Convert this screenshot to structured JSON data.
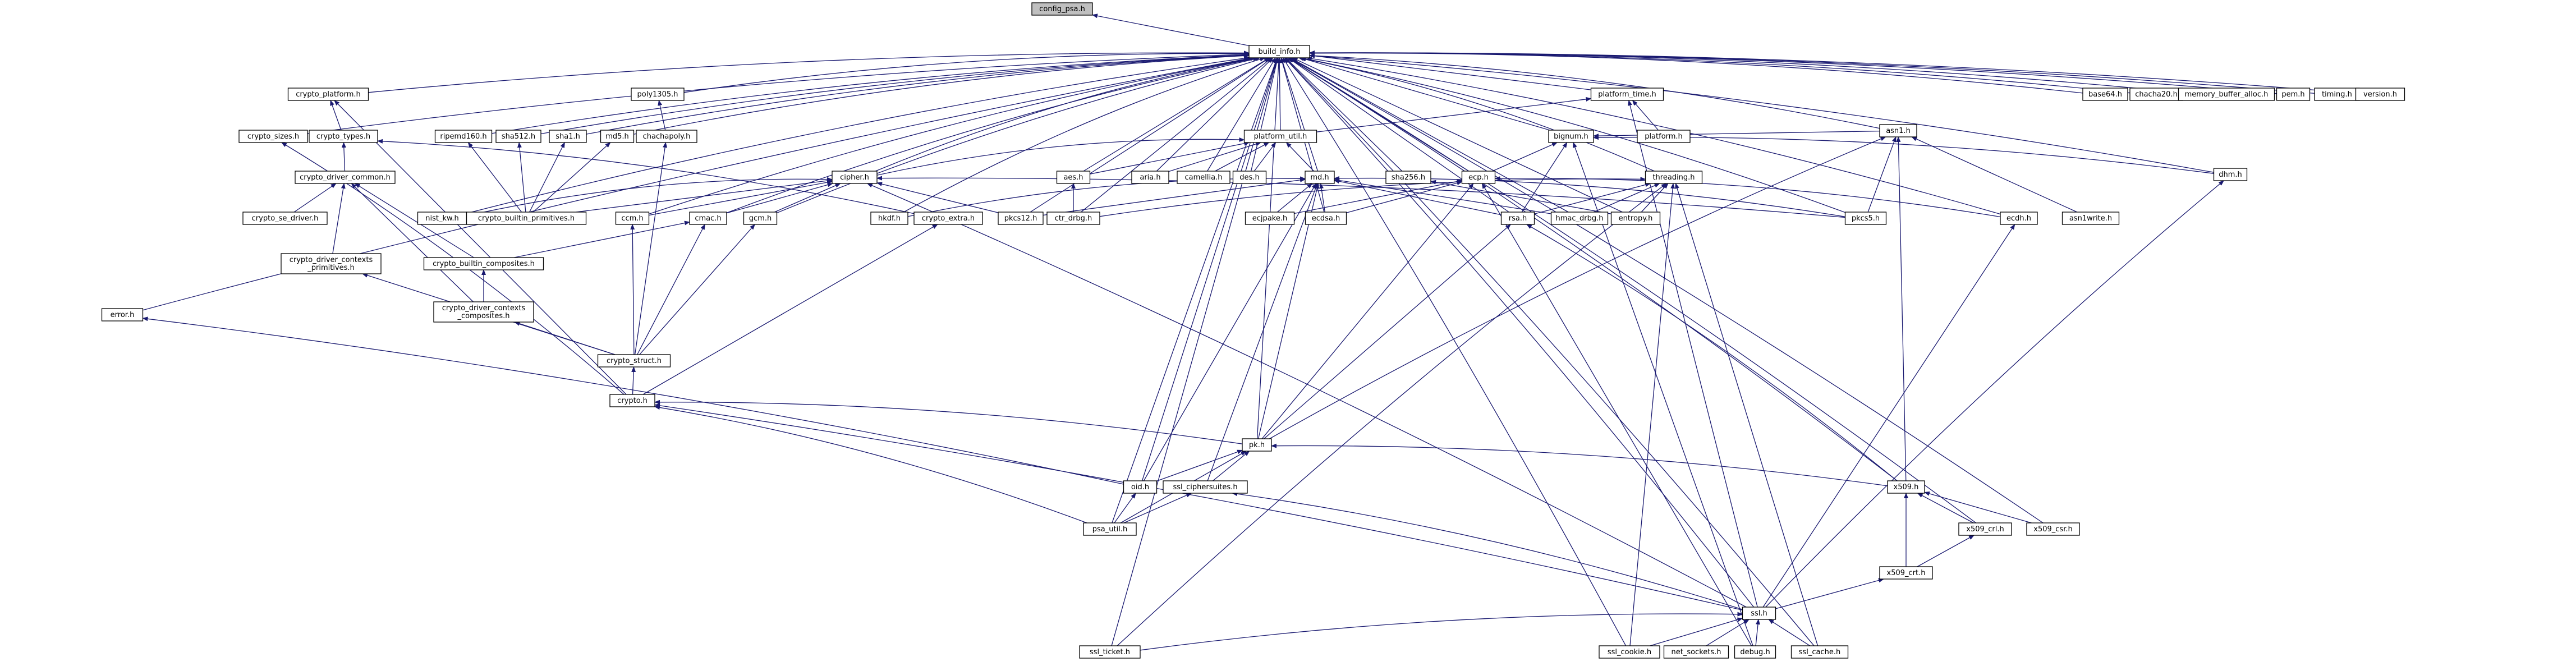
{
  "colors": {
    "edge": "#191970",
    "node_fill": "#ffffff",
    "root_fill": "#bfbfbf",
    "node_stroke": "#000000"
  },
  "nodes": [
    {
      "id": "config_psa",
      "label": "config_psa.h",
      "root": true
    },
    {
      "id": "build_info",
      "label": "build_info.h"
    },
    {
      "id": "crypto_platform",
      "label": "crypto_platform.h"
    },
    {
      "id": "poly1305",
      "label": "poly1305.h"
    },
    {
      "id": "platform_time",
      "label": "platform_time.h"
    },
    {
      "id": "base64",
      "label": "base64.h"
    },
    {
      "id": "chacha20",
      "label": "chacha20.h"
    },
    {
      "id": "memory_buffer_alloc",
      "label": "memory_buffer_alloc.h"
    },
    {
      "id": "pem",
      "label": "pem.h"
    },
    {
      "id": "timing",
      "label": "timing.h"
    },
    {
      "id": "version",
      "label": "version.h"
    },
    {
      "id": "crypto_sizes",
      "label": "crypto_sizes.h"
    },
    {
      "id": "crypto_types",
      "label": "crypto_types.h"
    },
    {
      "id": "ripemd160",
      "label": "ripemd160.h"
    },
    {
      "id": "sha512",
      "label": "sha512.h"
    },
    {
      "id": "sha1",
      "label": "sha1.h"
    },
    {
      "id": "md5",
      "label": "md5.h"
    },
    {
      "id": "chachapoly",
      "label": "chachapoly.h"
    },
    {
      "id": "platform_util",
      "label": "platform_util.h"
    },
    {
      "id": "platform",
      "label": "platform.h"
    },
    {
      "id": "bignum",
      "label": "bignum.h"
    },
    {
      "id": "asn1",
      "label": "asn1.h"
    },
    {
      "id": "dhm",
      "label": "dhm.h"
    },
    {
      "id": "crypto_driver_common",
      "label": "crypto_driver_common.h"
    },
    {
      "id": "cipher",
      "label": "cipher.h"
    },
    {
      "id": "aes",
      "label": "aes.h"
    },
    {
      "id": "aria",
      "label": "aria.h"
    },
    {
      "id": "camellia",
      "label": "camellia.h"
    },
    {
      "id": "des",
      "label": "des.h"
    },
    {
      "id": "md",
      "label": "md.h"
    },
    {
      "id": "sha256",
      "label": "sha256.h"
    },
    {
      "id": "ecp",
      "label": "ecp.h"
    },
    {
      "id": "threading",
      "label": "threading.h"
    },
    {
      "id": "crypto_se_driver",
      "label": "crypto_se_driver.h"
    },
    {
      "id": "nist_kw",
      "label": "nist_kw.h"
    },
    {
      "id": "crypto_builtin_primitives",
      "label": "crypto_builtin_primitives.h"
    },
    {
      "id": "ccm",
      "label": "ccm.h"
    },
    {
      "id": "cmac",
      "label": "cmac.h"
    },
    {
      "id": "gcm",
      "label": "gcm.h"
    },
    {
      "id": "hkdf",
      "label": "hkdf.h"
    },
    {
      "id": "crypto_extra",
      "label": "crypto_extra.h"
    },
    {
      "id": "pkcs12",
      "label": "pkcs12.h"
    },
    {
      "id": "ctr_drbg",
      "label": "ctr_drbg.h"
    },
    {
      "id": "ecjpake",
      "label": "ecjpake.h"
    },
    {
      "id": "ecdsa",
      "label": "ecdsa.h"
    },
    {
      "id": "rsa",
      "label": "rsa.h"
    },
    {
      "id": "hmac_drbg",
      "label": "hmac_drbg.h"
    },
    {
      "id": "entropy",
      "label": "entropy.h"
    },
    {
      "id": "pkcs5",
      "label": "pkcs5.h"
    },
    {
      "id": "ecdh",
      "label": "ecdh.h"
    },
    {
      "id": "asn1write",
      "label": "asn1write.h"
    },
    {
      "id": "crypto_driver_contexts_primitives",
      "label": "crypto_driver_contexts\n_primitives.h"
    },
    {
      "id": "crypto_builtin_composites",
      "label": "crypto_builtin_composites.h"
    },
    {
      "id": "crypto_driver_contexts_composites",
      "label": "crypto_driver_contexts\n_composites.h"
    },
    {
      "id": "crypto_struct",
      "label": "crypto_struct.h"
    },
    {
      "id": "error",
      "label": "error.h"
    },
    {
      "id": "crypto",
      "label": "crypto.h"
    },
    {
      "id": "pk",
      "label": "pk.h"
    },
    {
      "id": "x509",
      "label": "x509.h"
    },
    {
      "id": "oid",
      "label": "oid.h"
    },
    {
      "id": "ssl_ciphersuites",
      "label": "ssl_ciphersuites.h"
    },
    {
      "id": "x509_crl",
      "label": "x509_crl.h"
    },
    {
      "id": "x509_csr",
      "label": "x509_csr.h"
    },
    {
      "id": "psa_util",
      "label": "psa_util.h"
    },
    {
      "id": "x509_crt",
      "label": "x509_crt.h"
    },
    {
      "id": "ssl",
      "label": "ssl.h"
    },
    {
      "id": "ssl_ticket",
      "label": "ssl_ticket.h"
    },
    {
      "id": "ssl_cookie",
      "label": "ssl_cookie.h"
    },
    {
      "id": "net_sockets",
      "label": "net_sockets.h"
    },
    {
      "id": "debug",
      "label": "debug.h"
    },
    {
      "id": "ssl_cache",
      "label": "ssl_cache.h"
    }
  ],
  "edges": [
    [
      "build_info",
      "config_psa"
    ],
    [
      "crypto_platform",
      "build_info"
    ],
    [
      "poly1305",
      "build_info"
    ],
    [
      "platform_time",
      "build_info"
    ],
    [
      "base64",
      "build_info"
    ],
    [
      "chacha20",
      "build_info"
    ],
    [
      "memory_buffer_alloc",
      "build_info"
    ],
    [
      "pem",
      "build_info"
    ],
    [
      "timing",
      "build_info"
    ],
    [
      "version",
      "build_info"
    ],
    [
      "crypto_sizes",
      "build_info"
    ],
    [
      "ripemd160",
      "build_info"
    ],
    [
      "sha512",
      "build_info"
    ],
    [
      "sha1",
      "build_info"
    ],
    [
      "md5",
      "build_info"
    ],
    [
      "platform_util",
      "build_info"
    ],
    [
      "bignum",
      "build_info"
    ],
    [
      "asn1",
      "build_info"
    ],
    [
      "dhm",
      "build_info"
    ],
    [
      "cipher",
      "build_info"
    ],
    [
      "aes",
      "build_info"
    ],
    [
      "aria",
      "build_info"
    ],
    [
      "camellia",
      "build_info"
    ],
    [
      "des",
      "build_info"
    ],
    [
      "md",
      "build_info"
    ],
    [
      "sha256",
      "build_info"
    ],
    [
      "ecp",
      "build_info"
    ],
    [
      "threading",
      "build_info"
    ],
    [
      "nist_kw",
      "build_info"
    ],
    [
      "ccm",
      "build_info"
    ],
    [
      "cmac",
      "build_info"
    ],
    [
      "gcm",
      "build_info"
    ],
    [
      "hkdf",
      "build_info"
    ],
    [
      "pkcs12",
      "build_info"
    ],
    [
      "ctr_drbg",
      "build_info"
    ],
    [
      "ecdsa",
      "build_info"
    ],
    [
      "rsa",
      "build_info"
    ],
    [
      "hmac_drbg",
      "build_info"
    ],
    [
      "entropy",
      "build_info"
    ],
    [
      "pkcs5",
      "build_info"
    ],
    [
      "ecdh",
      "build_info"
    ],
    [
      "error",
      "build_info"
    ],
    [
      "pk",
      "build_info"
    ],
    [
      "x509",
      "build_info"
    ],
    [
      "oid",
      "build_info"
    ],
    [
      "x509_crl",
      "build_info"
    ],
    [
      "x509_csr",
      "build_info"
    ],
    [
      "psa_util",
      "build_info"
    ],
    [
      "ssl",
      "build_info"
    ],
    [
      "ssl_ticket",
      "build_info"
    ],
    [
      "ssl_cookie",
      "build_info"
    ],
    [
      "ssl_cache",
      "build_info"
    ],
    [
      "crypto_types",
      "crypto_platform"
    ],
    [
      "crypto",
      "crypto_platform"
    ],
    [
      "chachapoly",
      "poly1305"
    ],
    [
      "platform",
      "platform_time"
    ],
    [
      "platform_util",
      "platform_time"
    ],
    [
      "ssl",
      "platform_time"
    ],
    [
      "crypto_driver_common",
      "crypto_types"
    ],
    [
      "crypto_extra",
      "crypto_types"
    ],
    [
      "crypto",
      "crypto_sizes"
    ],
    [
      "crypto_builtin_primitives",
      "ripemd160"
    ],
    [
      "crypto_builtin_primitives",
      "sha512"
    ],
    [
      "crypto_builtin_primitives",
      "sha1"
    ],
    [
      "crypto_builtin_primitives",
      "md5"
    ],
    [
      "crypto_struct",
      "chachapoly"
    ],
    [
      "aes",
      "platform_util"
    ],
    [
      "aria",
      "platform_util"
    ],
    [
      "camellia",
      "platform_util"
    ],
    [
      "des",
      "platform_util"
    ],
    [
      "md",
      "platform_util"
    ],
    [
      "cipher",
      "platform_util"
    ],
    [
      "ecp",
      "bignum"
    ],
    [
      "dhm",
      "bignum"
    ],
    [
      "rsa",
      "bignum"
    ],
    [
      "asn1",
      "bignum"
    ],
    [
      "x509",
      "asn1"
    ],
    [
      "pkcs5",
      "asn1"
    ],
    [
      "asn1write",
      "asn1"
    ],
    [
      "pk",
      "asn1"
    ],
    [
      "crypto_se_driver",
      "crypto_driver_common"
    ],
    [
      "crypto_driver_contexts_primitives",
      "crypto_driver_common"
    ],
    [
      "crypto_builtin_composites",
      "crypto_driver_common"
    ],
    [
      "crypto_driver_contexts_composites",
      "crypto_driver_common"
    ],
    [
      "crypto_builtin_primitives",
      "cipher"
    ],
    [
      "ccm",
      "cipher"
    ],
    [
      "cmac",
      "cipher"
    ],
    [
      "gcm",
      "cipher"
    ],
    [
      "nist_kw",
      "cipher"
    ],
    [
      "pkcs12",
      "cipher"
    ],
    [
      "pkcs5",
      "cipher"
    ],
    [
      "ssl",
      "cipher"
    ],
    [
      "ctr_drbg",
      "aes"
    ],
    [
      "hmac_drbg",
      "md"
    ],
    [
      "ecjpake",
      "md"
    ],
    [
      "ecdsa",
      "md"
    ],
    [
      "rsa",
      "md"
    ],
    [
      "pkcs12",
      "md"
    ],
    [
      "pkcs5",
      "md"
    ],
    [
      "hkdf",
      "md"
    ],
    [
      "pk",
      "md"
    ],
    [
      "oid",
      "md"
    ],
    [
      "ssl_ciphersuites",
      "md"
    ],
    [
      "entropy",
      "sha256"
    ],
    [
      "ecdh",
      "ecp"
    ],
    [
      "ecdsa",
      "ecp"
    ],
    [
      "ecjpake",
      "ecp"
    ],
    [
      "pk",
      "ecp"
    ],
    [
      "rsa",
      "threading"
    ],
    [
      "ctr_drbg",
      "threading"
    ],
    [
      "entropy",
      "threading"
    ],
    [
      "hmac_drbg",
      "threading"
    ],
    [
      "ssl_cache",
      "threading"
    ],
    [
      "ssl_cookie",
      "threading"
    ],
    [
      "ssl_ticket",
      "threading"
    ],
    [
      "crypto_builtin_composites",
      "cmac"
    ],
    [
      "crypto_struct",
      "cmac"
    ],
    [
      "crypto_struct",
      "gcm"
    ],
    [
      "crypto_struct",
      "ccm"
    ],
    [
      "crypto",
      "crypto_extra"
    ],
    [
      "crypto_driver_contexts_composites",
      "crypto_builtin_composites"
    ],
    [
      "crypto_struct",
      "crypto_driver_contexts_composites"
    ],
    [
      "crypto_struct",
      "crypto_driver_contexts_primitives"
    ],
    [
      "crypto",
      "crypto_struct"
    ],
    [
      "pk",
      "crypto"
    ],
    [
      "psa_util",
      "crypto"
    ],
    [
      "ssl",
      "crypto"
    ],
    [
      "pk",
      "rsa"
    ],
    [
      "x509",
      "rsa"
    ],
    [
      "ssl",
      "ecdh"
    ],
    [
      "x509",
      "pk"
    ],
    [
      "oid",
      "pk"
    ],
    [
      "ssl_ciphersuites",
      "pk"
    ],
    [
      "psa_util",
      "pk"
    ],
    [
      "x509_crl",
      "x509"
    ],
    [
      "x509_csr",
      "x509"
    ],
    [
      "x509_crt",
      "x509"
    ],
    [
      "psa_util",
      "oid"
    ],
    [
      "oid",
      "error"
    ],
    [
      "psa_util",
      "ssl_ciphersuites"
    ],
    [
      "x509_crt",
      "x509_crl"
    ],
    [
      "ssl",
      "x509_crt"
    ],
    [
      "ssl",
      "ssl_ciphersuites"
    ],
    [
      "ssl",
      "dhm"
    ],
    [
      "ssl_ticket",
      "ssl"
    ],
    [
      "ssl_cookie",
      "ssl"
    ],
    [
      "net_sockets",
      "ssl"
    ],
    [
      "debug",
      "ssl"
    ],
    [
      "ssl_cache",
      "ssl"
    ],
    [
      "debug",
      "ecp"
    ],
    [
      "debug",
      "bignum"
    ]
  ]
}
